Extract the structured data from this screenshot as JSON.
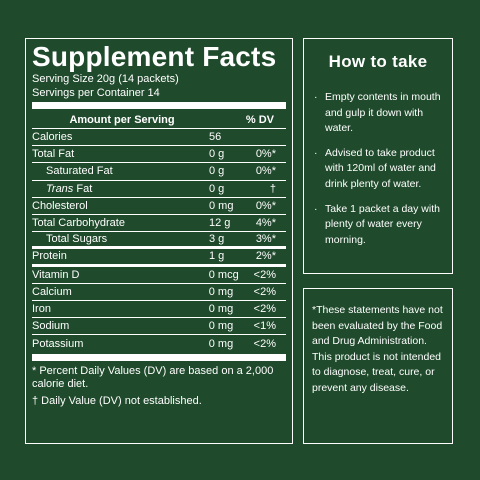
{
  "facts": {
    "title": "Supplement Facts",
    "serving_size": "Serving Size 20g (14 packets)",
    "servings_per_container": "Servings per Container 14",
    "header_amount": "Amount per Serving",
    "header_dv": "% DV",
    "rows": [
      {
        "name": "Calories",
        "amount": "56",
        "dv": ""
      },
      {
        "name": "Total Fat",
        "amount": "0 g",
        "dv": "0%*"
      },
      {
        "name": "Saturated Fat",
        "amount": "0 g",
        "dv": "0%*"
      },
      {
        "name_prefix": "Trans",
        "name": " Fat",
        "amount": "0 g",
        "dv": "†"
      },
      {
        "name": "Cholesterol",
        "amount": "0 mg",
        "dv": "0%*"
      },
      {
        "name": "Total Carbohydrate",
        "amount": "12 g",
        "dv": "4%*"
      },
      {
        "name": "Total Sugars",
        "amount": "3 g",
        "dv": "3%*"
      },
      {
        "name": "Protein",
        "amount": "1 g",
        "dv": "2%*"
      },
      {
        "name": "Vitamin D",
        "amount": "0 mcg",
        "dv": "<2%"
      },
      {
        "name": "Calcium",
        "amount": "0 mg",
        "dv": "<2%"
      },
      {
        "name": "Iron",
        "amount": "0 mg",
        "dv": "<2%"
      },
      {
        "name": "Sodium",
        "amount": "0 mg",
        "dv": "<1%"
      },
      {
        "name": "Potassium",
        "amount": "0 mg",
        "dv": "<2%"
      }
    ],
    "footnote_1": "* Percent Daily Values (DV) are based on a 2,000 calorie diet.",
    "footnote_2": "† Daily Value (DV) not established."
  },
  "howto": {
    "title": "How to take",
    "bullet": "·",
    "steps": [
      "Empty contents in mouth and gulp it down with water.",
      "Advised to take product with 120ml of water and drink plenty of water.",
      "Take 1 packet a day with plenty of water every morning."
    ]
  },
  "disclaimer": {
    "text": "*These statements have not been evaluated by the Food and Drug Administration. This product is not intended to diagnose, treat, cure, or prevent any disease."
  }
}
